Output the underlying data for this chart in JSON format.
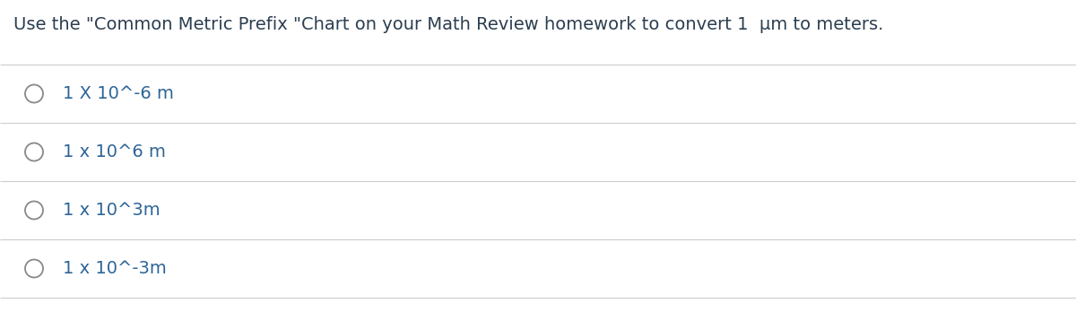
{
  "background_color": "#ffffff",
  "question_text": "Use the \"Common Metric Prefix \"Chart on your Math Review homework to convert 1  μm to meters.",
  "question_fontsize": 14,
  "question_color": "#2c3e50",
  "divider_color": "#cccccc",
  "divider_linewidth": 0.8,
  "options": [
    "1 X 10^-6 m",
    "1 x 10^6 m",
    "1 x 10^3m",
    "1 x 10^-3m"
  ],
  "option_color": "#2c6496",
  "option_fontsize": 14,
  "circle_color": "#888888",
  "circle_linewidth": 1.3,
  "fig_width": 12.0,
  "fig_height": 3.48,
  "dpi": 100
}
